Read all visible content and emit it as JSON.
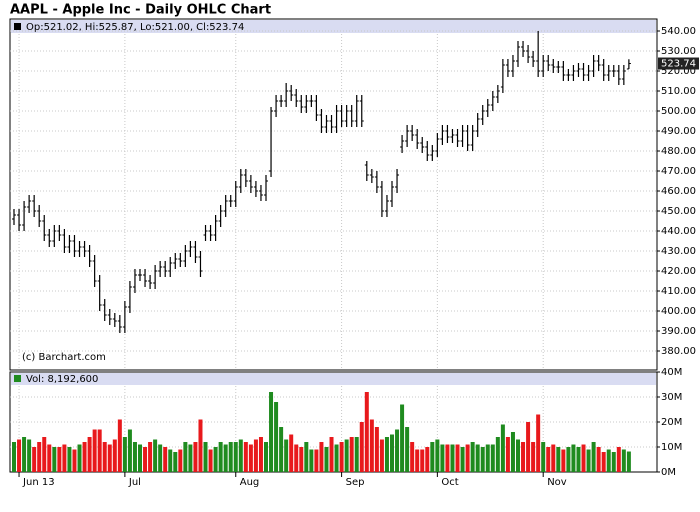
{
  "chart_data": [
    {
      "type": "ohlc",
      "title": "AAPL - Apple Inc - Daily OHLC Chart",
      "annotation": "Op:521.02, Hi:525.87, Lo:521.00, Cl:523.74",
      "source": "(c) Barchart.com",
      "color": "#000000",
      "grid": true,
      "ylim": [
        370.5,
        546
      ],
      "yticks": [
        {
          "value": 380,
          "label": "380.00"
        },
        {
          "value": 390,
          "label": "390.00"
        },
        {
          "value": 400,
          "label": "400.00"
        },
        {
          "value": 410,
          "label": "410.00"
        },
        {
          "value": 420,
          "label": "420.00"
        },
        {
          "value": 430,
          "label": "430.00"
        },
        {
          "value": 440,
          "label": "440.00"
        },
        {
          "value": 450,
          "label": "450.00"
        },
        {
          "value": 460,
          "label": "460.00"
        },
        {
          "value": 470,
          "label": "470.00"
        },
        {
          "value": 480,
          "label": "480.00"
        },
        {
          "value": 490,
          "label": "490.00"
        },
        {
          "value": 500,
          "label": "500.00"
        },
        {
          "value": 510,
          "label": "510.00"
        },
        {
          "value": 520,
          "label": "520.00"
        },
        {
          "value": 530,
          "label": "530.00"
        },
        {
          "value": 540,
          "label": "540.00"
        }
      ],
      "open": [
        446,
        448,
        443,
        452,
        455,
        450,
        445,
        438,
        435,
        440,
        438,
        432,
        435,
        430,
        432,
        430,
        425,
        415,
        403,
        398,
        396,
        395,
        392,
        402,
        412,
        418,
        418,
        415,
        414,
        420,
        422,
        420,
        424,
        426,
        425,
        430,
        432,
        427,
        438,
        440,
        438,
        445,
        450,
        455,
        455,
        462,
        468,
        465,
        462,
        460,
        458,
        470,
        500,
        505,
        505,
        510,
        508,
        505,
        502,
        505,
        505,
        498,
        492,
        495,
        492,
        500,
        495,
        500,
        495,
        505,
        473,
        468,
        467,
        462,
        450,
        455,
        462,
        482,
        485,
        490,
        488,
        484,
        482,
        478,
        480,
        486,
        490,
        487,
        488,
        485,
        490,
        483,
        490,
        496,
        500,
        503,
        507,
        512,
        523,
        520,
        525,
        532,
        530,
        527,
        525,
        520,
        525,
        523,
        522,
        522,
        518,
        518,
        520,
        521,
        518,
        520,
        525,
        523,
        518,
        520,
        520,
        516,
        521.02
      ],
      "high": [
        451,
        451,
        455,
        458,
        458,
        453,
        448,
        441,
        443,
        443,
        441,
        438,
        438,
        435,
        435,
        433,
        428,
        418,
        406,
        401,
        399,
        398,
        405,
        415,
        421,
        421,
        421,
        418,
        423,
        425,
        425,
        427,
        429,
        429,
        433,
        435,
        435,
        430,
        443,
        443,
        448,
        453,
        458,
        458,
        465,
        471,
        471,
        468,
        465,
        463,
        468,
        502,
        508,
        508,
        514,
        513,
        511,
        508,
        508,
        508,
        508,
        501,
        498,
        498,
        503,
        503,
        503,
        503,
        508,
        508,
        475,
        471,
        470,
        465,
        458,
        465,
        471,
        488,
        493,
        493,
        491,
        487,
        485,
        483,
        489,
        493,
        493,
        491,
        491,
        493,
        493,
        493,
        499,
        503,
        506,
        510,
        513,
        526,
        526,
        528,
        535,
        535,
        533,
        530,
        540,
        528,
        528,
        526,
        525,
        525,
        521,
        523,
        524,
        524,
        523,
        528,
        528,
        526,
        523,
        523,
        523,
        523,
        525.87
      ],
      "low": [
        443,
        440,
        440,
        449,
        447,
        442,
        435,
        432,
        432,
        435,
        429,
        429,
        427,
        427,
        427,
        422,
        412,
        400,
        395,
        393,
        392,
        389,
        389,
        399,
        409,
        415,
        412,
        411,
        411,
        417,
        417,
        417,
        421,
        422,
        422,
        427,
        424,
        417,
        435,
        435,
        435,
        442,
        447,
        452,
        452,
        459,
        462,
        459,
        457,
        455,
        455,
        467,
        497,
        502,
        502,
        505,
        502,
        499,
        499,
        502,
        495,
        489,
        489,
        489,
        489,
        492,
        492,
        492,
        492,
        492,
        465,
        464,
        459,
        447,
        447,
        452,
        459,
        479,
        482,
        485,
        481,
        479,
        475,
        475,
        477,
        483,
        484,
        484,
        482,
        482,
        480,
        480,
        487,
        493,
        497,
        500,
        504,
        509,
        517,
        517,
        522,
        527,
        524,
        522,
        517,
        517,
        520,
        519,
        519,
        515,
        515,
        515,
        517,
        515,
        515,
        517,
        520,
        515,
        515,
        517,
        513,
        513,
        521
      ],
      "close": [
        448,
        443,
        452,
        455,
        450,
        445,
        438,
        435,
        440,
        438,
        432,
        435,
        430,
        432,
        430,
        425,
        415,
        403,
        398,
        396,
        395,
        392,
        402,
        412,
        418,
        418,
        415,
        414,
        420,
        422,
        420,
        424,
        426,
        425,
        430,
        432,
        427,
        420,
        440,
        438,
        445,
        450,
        455,
        455,
        462,
        468,
        465,
        462,
        460,
        458,
        465,
        500,
        505,
        505,
        510,
        508,
        505,
        502,
        505,
        505,
        498,
        492,
        495,
        492,
        500,
        495,
        500,
        495,
        505,
        495,
        468,
        467,
        462,
        450,
        455,
        462,
        468,
        485,
        490,
        488,
        484,
        482,
        478,
        480,
        486,
        490,
        487,
        488,
        485,
        490,
        483,
        490,
        496,
        500,
        503,
        507,
        510,
        523,
        520,
        525,
        532,
        530,
        527,
        525,
        520,
        525,
        523,
        522,
        522,
        518,
        518,
        520,
        521,
        518,
        520,
        525,
        523,
        518,
        520,
        520,
        516,
        520,
        523.74
      ]
    },
    {
      "type": "bar",
      "annotation": "Vol: 8,192,600",
      "up_color": "#1f8b1f",
      "down_color": "#e8191c",
      "grid": true,
      "ylim": [
        0,
        40000000
      ],
      "yticks": [
        {
          "value": 0,
          "label": "0M"
        },
        {
          "value": 10000000,
          "label": "10M"
        },
        {
          "value": 20000000,
          "label": "20M"
        },
        {
          "value": 30000000,
          "label": "30M"
        },
        {
          "value": 40000000,
          "label": "40M"
        }
      ],
      "categories": [
        null,
        "Jun 13",
        null,
        null,
        null,
        null,
        null,
        null,
        null,
        null,
        null,
        null,
        null,
        null,
        null,
        null,
        null,
        null,
        null,
        null,
        null,
        null,
        "Jul",
        null,
        null,
        null,
        null,
        null,
        null,
        null,
        null,
        null,
        null,
        null,
        null,
        null,
        null,
        null,
        null,
        null,
        null,
        null,
        null,
        null,
        "Aug",
        null,
        null,
        null,
        null,
        null,
        null,
        null,
        null,
        null,
        null,
        null,
        null,
        null,
        null,
        null,
        null,
        null,
        null,
        null,
        null,
        "Sep",
        null,
        null,
        null,
        null,
        null,
        null,
        null,
        null,
        null,
        null,
        null,
        null,
        null,
        null,
        null,
        null,
        null,
        null,
        "Oct",
        null,
        null,
        null,
        null,
        null,
        null,
        null,
        null,
        null,
        null,
        null,
        null,
        null,
        null,
        null,
        null,
        null,
        null,
        null,
        null,
        "Nov",
        null,
        null,
        null,
        null,
        null,
        null,
        null,
        null,
        null,
        null,
        null,
        null,
        null,
        null,
        null,
        null,
        null
      ],
      "values": [
        12000000,
        13000000,
        14000000,
        13000000,
        10000000,
        12000000,
        14000000,
        11000000,
        10000000,
        10000000,
        11000000,
        10000000,
        9000000,
        11000000,
        12000000,
        14000000,
        17000000,
        17000000,
        12000000,
        11000000,
        13000000,
        21000000,
        14000000,
        17000000,
        12000000,
        11000000,
        10000000,
        12000000,
        13000000,
        11000000,
        10000000,
        9000000,
        8000000,
        9000000,
        12000000,
        11000000,
        12000000,
        21000000,
        12000000,
        9000000,
        10000000,
        12000000,
        11000000,
        12000000,
        12000000,
        13000000,
        12000000,
        11000000,
        13000000,
        14000000,
        12000000,
        32000000,
        28000000,
        18000000,
        13000000,
        15000000,
        11000000,
        10000000,
        12000000,
        9000000,
        9000000,
        12000000,
        10000000,
        14000000,
        11000000,
        12000000,
        13000000,
        14000000,
        14000000,
        20000000,
        32000000,
        21000000,
        18000000,
        13000000,
        14000000,
        15000000,
        17000000,
        27000000,
        18000000,
        12000000,
        9000000,
        9000000,
        10000000,
        12000000,
        13000000,
        11000000,
        11000000,
        11000000,
        11000000,
        10000000,
        11000000,
        12000000,
        11000000,
        10000000,
        11000000,
        11000000,
        14000000,
        19000000,
        14000000,
        16000000,
        13000000,
        12000000,
        20000000,
        12000000,
        23000000,
        12000000,
        10000000,
        11000000,
        10000000,
        9000000,
        10000000,
        11000000,
        10000000,
        11000000,
        9000000,
        12000000,
        10000000,
        8000000,
        9000000,
        8000000,
        10000000,
        9000000,
        8192600
      ]
    }
  ]
}
